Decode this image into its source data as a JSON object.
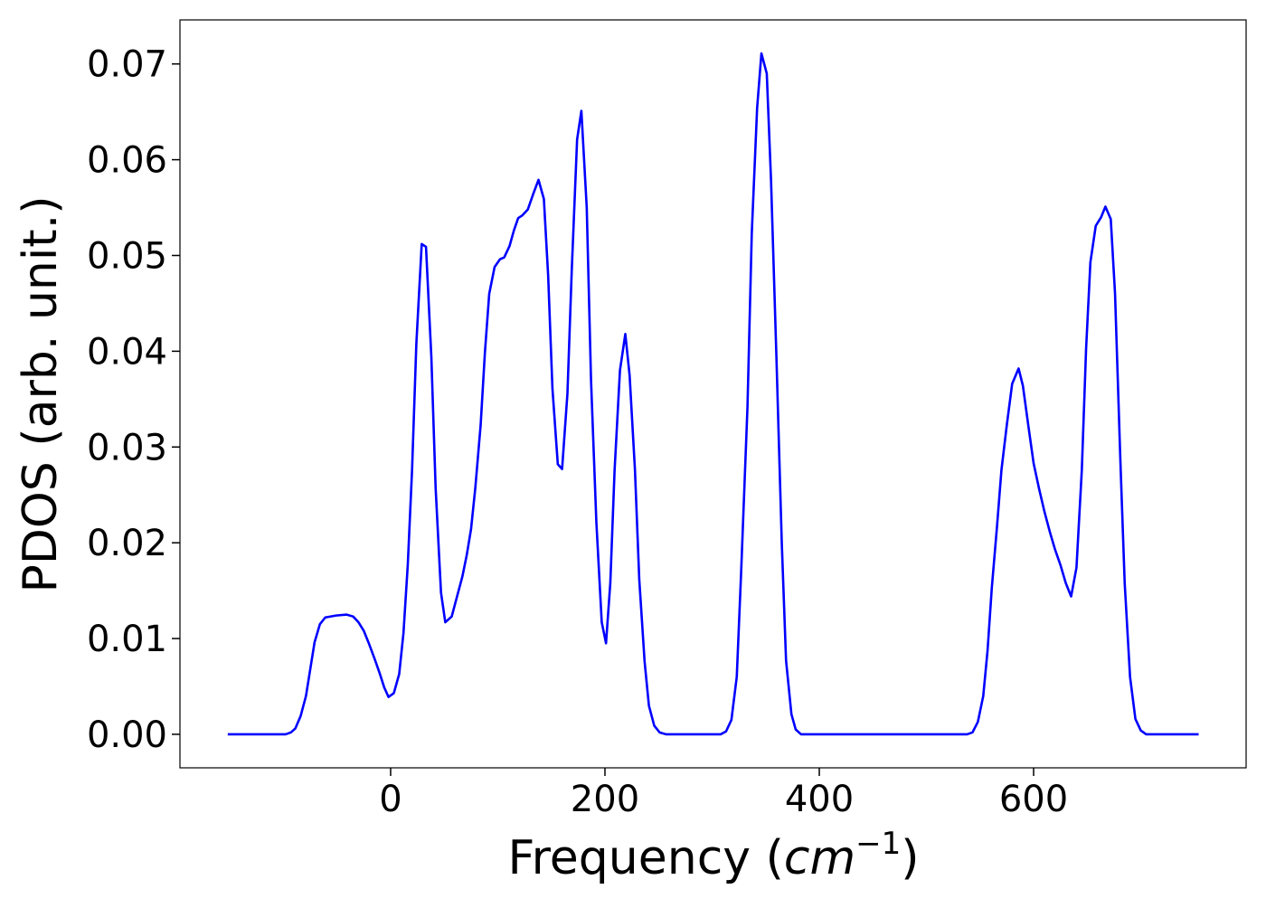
{
  "chart_data": {
    "type": "line",
    "ylabel": "PDOS (arb. unit.)",
    "xlabel_parts": [
      "Frequency (",
      "cm",
      "−1",
      ")"
    ],
    "color": "#0000ff",
    "x": [
      -152,
      -98,
      -93,
      -89,
      -84,
      -79,
      -75,
      -71,
      -66,
      -61,
      -51,
      -41,
      -35,
      -30,
      -25,
      -20,
      -15,
      -10,
      -6,
      -2,
      3,
      8,
      12,
      16,
      20,
      24,
      29,
      33,
      38,
      42,
      47,
      51,
      57,
      62,
      67,
      71,
      75,
      79,
      84,
      88,
      92,
      97,
      102,
      106,
      111,
      115,
      119,
      123,
      128,
      133,
      138,
      143,
      147,
      151,
      156,
      160,
      165,
      169,
      174,
      178,
      183,
      187,
      192,
      197,
      201,
      205,
      209,
      214,
      219,
      223,
      228,
      232,
      237,
      241,
      246,
      251,
      257,
      308,
      313,
      318,
      323,
      327,
      333,
      337,
      342,
      346,
      351,
      355,
      360,
      365,
      369,
      374,
      378,
      383,
      538,
      543,
      548,
      553,
      557,
      561,
      566,
      570,
      575,
      580,
      586,
      590,
      595,
      600,
      605,
      610,
      615,
      620,
      625,
      630,
      635,
      640,
      645,
      649,
      653,
      658,
      663,
      667,
      672,
      676,
      681,
      685,
      690,
      695,
      700,
      705,
      754
    ],
    "values": [
      0,
      0,
      0.0002,
      0.0006,
      0.0019,
      0.004,
      0.0068,
      0.0096,
      0.0115,
      0.0122,
      0.0124,
      0.0125,
      0.0123,
      0.0117,
      0.0108,
      0.0094,
      0.0079,
      0.0063,
      0.0049,
      0.0039,
      0.0043,
      0.0063,
      0.0106,
      0.0177,
      0.0276,
      0.0408,
      0.0512,
      0.0509,
      0.0394,
      0.0257,
      0.0148,
      0.0117,
      0.0123,
      0.0144,
      0.0165,
      0.0187,
      0.0214,
      0.0257,
      0.0323,
      0.0399,
      0.046,
      0.0488,
      0.0496,
      0.0498,
      0.051,
      0.0526,
      0.0539,
      0.0542,
      0.0548,
      0.0564,
      0.0579,
      0.0559,
      0.0479,
      0.0361,
      0.0282,
      0.0277,
      0.0356,
      0.0484,
      0.0621,
      0.0651,
      0.055,
      0.037,
      0.0221,
      0.0117,
      0.0095,
      0.0158,
      0.0276,
      0.038,
      0.0418,
      0.0375,
      0.0276,
      0.0162,
      0.0076,
      0.003,
      0.0009,
      0.0002,
      0,
      0,
      0.0003,
      0.0015,
      0.006,
      0.0167,
      0.0342,
      0.0523,
      0.0654,
      0.0711,
      0.069,
      0.0578,
      0.0394,
      0.02,
      0.0077,
      0.0021,
      0.0005,
      0,
      0,
      0.0002,
      0.0013,
      0.004,
      0.0087,
      0.0153,
      0.0219,
      0.0276,
      0.0323,
      0.0366,
      0.0382,
      0.0364,
      0.0323,
      0.0283,
      0.0257,
      0.0233,
      0.0212,
      0.0193,
      0.0177,
      0.0158,
      0.0144,
      0.0174,
      0.0276,
      0.0403,
      0.0493,
      0.0531,
      0.054,
      0.0551,
      0.0538,
      0.046,
      0.0285,
      0.0158,
      0.006,
      0.0016,
      0.0004,
      0,
      0
    ],
    "xlim": [
      -196.6,
      798.3
    ],
    "ylim": [
      -0.0035,
      0.0746
    ],
    "xticks": [
      0,
      200,
      400,
      600
    ],
    "yticks": [
      {
        "value": 0,
        "label": "0.00"
      },
      {
        "value": 0.01,
        "label": "0.01"
      },
      {
        "value": 0.02,
        "label": "0.02"
      },
      {
        "value": 0.03,
        "label": "0.03"
      },
      {
        "value": 0.04,
        "label": "0.04"
      },
      {
        "value": 0.05,
        "label": "0.05"
      },
      {
        "value": 0.06,
        "label": "0.06"
      },
      {
        "value": 0.07,
        "label": "0.07"
      }
    ],
    "grid": false
  }
}
